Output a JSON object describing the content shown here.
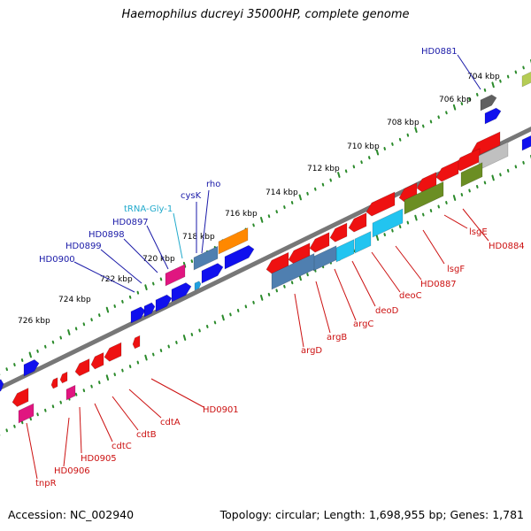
{
  "title": "Haemophilus ducreyi 35000HP, complete genome",
  "footer": {
    "accession": "Accession: NC_002940",
    "summary": "Topology: circular; Length: 1,698,955 bp; Genes: 1,781"
  },
  "colors": {
    "backbone": "#777777",
    "tick": "#2a8a2a",
    "forward_label": "#1a1aa8",
    "reverse_label": "#cc1111",
    "trna_label": "#22aacc"
  },
  "kbp_ticks": [
    "704 kbp",
    "706 kbp",
    "708 kbp",
    "710 kbp",
    "712 kbp",
    "714 kbp",
    "716 kbp",
    "718 kbp",
    "720 kbp",
    "722 kbp",
    "724 kbp",
    "726 kbp"
  ],
  "forward_labels": [
    "HD0881",
    "rho",
    "cysK",
    "tRNA-Gly-1",
    "HD0897",
    "HD0898",
    "HD0899",
    "HD0900"
  ],
  "reverse_labels": [
    "HD0884",
    "lsgE",
    "lsgF",
    "HD0887",
    "deoC",
    "deoD",
    "argC",
    "argB",
    "argD",
    "HD0901",
    "cdtA",
    "cdtB",
    "cdtC",
    "HD0905",
    "HD0906",
    "tnpR"
  ]
}
